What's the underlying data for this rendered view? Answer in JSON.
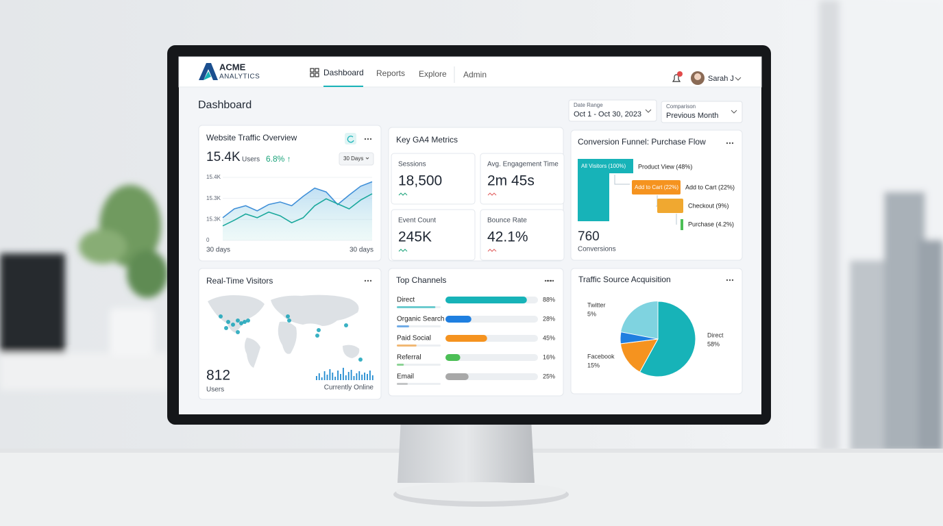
{
  "header": {
    "brand": "ACME",
    "brand_sub": "ANALYTICS",
    "nav": [
      "Dashboard",
      "Reports",
      "Explore",
      "Admin"
    ],
    "user": "Sarah J"
  },
  "page_title": "Dashboard",
  "filters": [
    {
      "label": "Date Range",
      "value": "Oct 1 - Oct 30, 2023"
    },
    {
      "label": "Comparison",
      "value": "Previous Month"
    }
  ],
  "traffic": {
    "title": "Website Traffic Overview",
    "value": "15.4K",
    "unit": "Users",
    "change": "6.8% ↑",
    "period": "30 Days",
    "y_labels": [
      "15.4K",
      "15.3K",
      "15.3K",
      "0"
    ],
    "x_labels": [
      "30 days",
      "30 days"
    ],
    "ylim": [
      0,
      100
    ],
    "series": [
      {
        "color": "#3f8fd8",
        "values": [
          36,
          50,
          55,
          47,
          57,
          61,
          55,
          70,
          83,
          77,
          57,
          72,
          86,
          93
        ]
      },
      {
        "color": "#1aa89c",
        "values": [
          23,
          32,
          42,
          36,
          45,
          39,
          28,
          36,
          55,
          66,
          58,
          50,
          64,
          74
        ]
      }
    ]
  },
  "metrics": {
    "title": "Key GA4 Metrics",
    "items": [
      {
        "label": "Sessions",
        "value": "18,500"
      },
      {
        "label": "Avg. Engagement Time",
        "value": "2m 45s"
      },
      {
        "label": "Event Count",
        "value": "245K"
      },
      {
        "label": "Bounce Rate",
        "value": "42.1%"
      }
    ]
  },
  "funnel": {
    "title": "Conversion Funnel: Purchase Flow",
    "steps": [
      "All Visitors (100%)",
      "Product View (48%)",
      "Add to Cart (22%)",
      "Checkout (9%)",
      "Purchase (4.2%)"
    ],
    "bar_label": "Add to Cart (22%)",
    "total": "760",
    "total_label": "Conversions"
  },
  "realtime": {
    "title": "Real-Time Visitors",
    "value": "812",
    "unit": "Users",
    "caption": "Currently Online"
  },
  "channels": {
    "title": "Top Channels",
    "categories": [
      "Direct",
      "Organic Search",
      "Paid Social",
      "Referral",
      "Email"
    ],
    "values": [
      88,
      28,
      45,
      16,
      25
    ],
    "value_labels": [
      "88%",
      "28%",
      "45%",
      "16%",
      "25%"
    ],
    "colors": [
      "#17b3b8",
      "#1f7fe0",
      "#f5931f",
      "#4cbf56",
      "#a8a8a8"
    ],
    "xlim": [
      0,
      100
    ]
  },
  "sources": {
    "title": "Traffic Source Acquisition",
    "categories": [
      "Direct",
      "Facebook",
      "Twitter"
    ],
    "values": [
      58,
      15,
      5
    ],
    "value_labels": [
      "58%",
      "15%",
      "5%"
    ],
    "colors": [
      "#17b3b8",
      "#f5931f",
      "#1f7fe0"
    ]
  }
}
